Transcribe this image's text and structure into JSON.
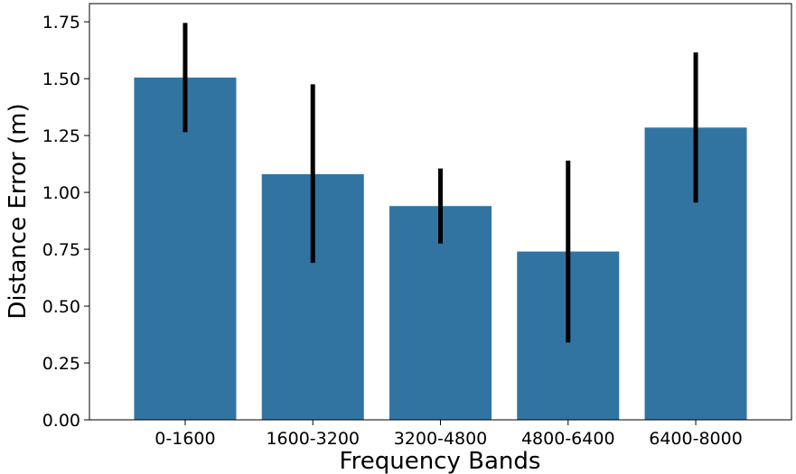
{
  "chart_data": {
    "type": "bar",
    "title": "",
    "xlabel": "Frequency Bands",
    "ylabel": "Distance Error (m)",
    "categories": [
      "0-1600",
      "1600-3200",
      "3200-4800",
      "4800-6400",
      "6400-8000"
    ],
    "values": [
      1.505,
      1.08,
      0.94,
      0.74,
      1.285
    ],
    "error_low": [
      1.265,
      0.69,
      0.775,
      0.34,
      0.955
    ],
    "error_high": [
      1.745,
      1.475,
      1.105,
      1.14,
      1.615
    ],
    "ylim": [
      0,
      1.83
    ],
    "yticks": [
      "0.00",
      "0.25",
      "0.50",
      "0.75",
      "1.00",
      "1.25",
      "1.50",
      "1.75"
    ],
    "grid": false,
    "legend": "none",
    "colors": {
      "bar": "#3274a1",
      "errorbar": "#000000",
      "axes": "#000000"
    }
  }
}
